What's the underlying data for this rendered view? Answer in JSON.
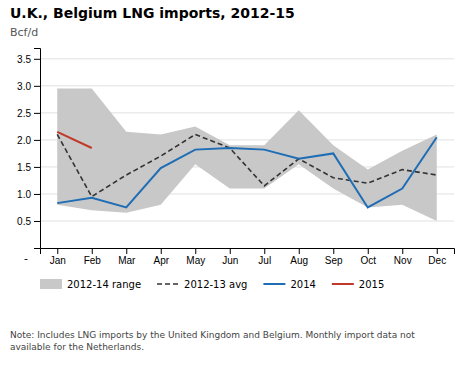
{
  "chart_data": {
    "type": "line",
    "title": "U.K., Belgium LNG imports, 2012-15",
    "y_label": "Bcf/d",
    "categories": [
      "Jan",
      "Feb",
      "Mar",
      "Apr",
      "May",
      "Jun",
      "Jul",
      "Aug",
      "Sep",
      "Oct",
      "Nov",
      "Dec"
    ],
    "series": [
      {
        "name": "2012-14 range",
        "type": "area",
        "color": "#c8c8c8",
        "low": [
          0.8,
          0.7,
          0.65,
          0.8,
          1.55,
          1.1,
          1.1,
          1.55,
          1.1,
          0.75,
          0.8,
          0.5
        ],
        "high": [
          2.95,
          2.95,
          2.15,
          2.1,
          2.25,
          1.9,
          1.9,
          2.55,
          1.9,
          1.45,
          1.8,
          2.1
        ]
      },
      {
        "name": "2012-13 avg",
        "type": "line",
        "color": "#333333",
        "line_style": "dashed",
        "values": [
          2.1,
          0.95,
          1.35,
          1.7,
          2.1,
          1.85,
          1.15,
          1.65,
          1.3,
          1.2,
          1.45,
          1.35
        ]
      },
      {
        "name": "2014",
        "type": "line",
        "color": "#1f6db5",
        "line_style": "solid",
        "values": [
          0.83,
          0.93,
          0.75,
          1.48,
          1.82,
          1.85,
          1.82,
          1.65,
          1.75,
          0.75,
          1.1,
          2.05
        ]
      },
      {
        "name": "2015",
        "type": "line",
        "color": "#c0392b",
        "line_style": "solid",
        "values": [
          2.15,
          1.85,
          null,
          null,
          null,
          null,
          null,
          null,
          null,
          null,
          null,
          null
        ]
      }
    ],
    "ylim": [
      0,
      3.7
    ],
    "yticks": [
      0.5,
      {
        "value": 1.0,
        "label": "1.0"
      },
      1.5,
      {
        "value": 2.0,
        "label": "2.0"
      },
      2.5,
      {
        "value": 3.0,
        "label": "3.0"
      },
      3.5
    ],
    "grid": true,
    "legend": "bottom",
    "annotations": [
      "-"
    ],
    "note": "Note: Includes LNG imports by the United Kingdom and Belgium. Monthly import data not\navailable for the Netherlands."
  }
}
